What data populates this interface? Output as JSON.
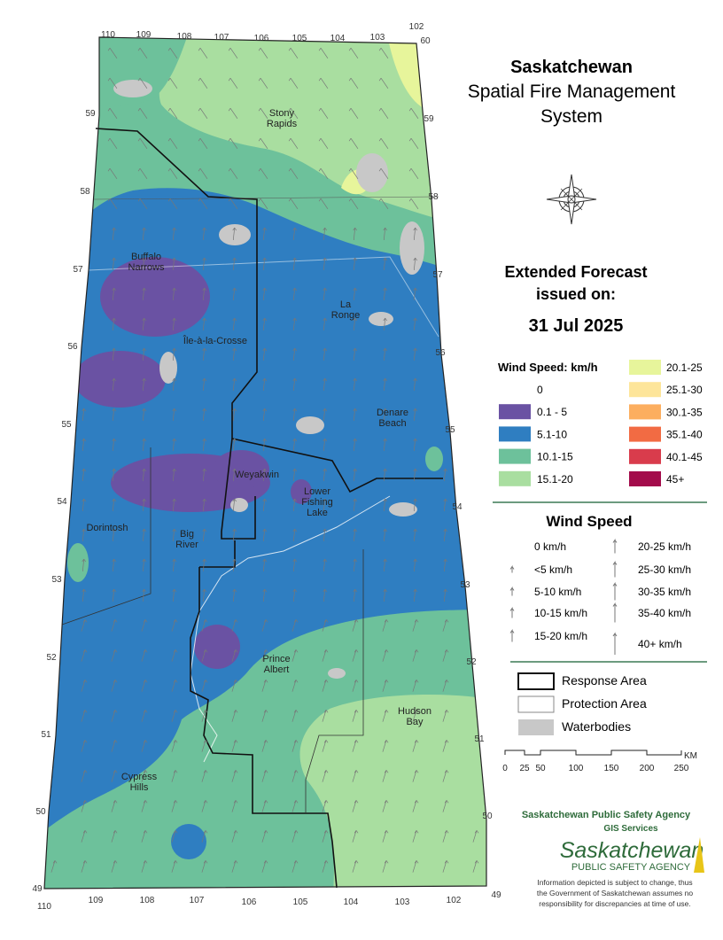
{
  "header": {
    "title": [
      "Saskatchewan",
      "Spatial Fire Management",
      "System"
    ],
    "forecast": [
      "Extended Forecast",
      "issued on:"
    ],
    "date": "31 Jul 2025"
  },
  "wind_legend": {
    "title": "Wind Speed: km/h",
    "classes": [
      {
        "label": "0",
        "color": "#ffffff"
      },
      {
        "label": "0.1 - 5",
        "color": "#6a52a3"
      },
      {
        "label": "5.1-10",
        "color": "#2f7ec1"
      },
      {
        "label": "10.1-15",
        "color": "#6dc19b"
      },
      {
        "label": "15.1-20",
        "color": "#a9dea0"
      },
      {
        "label": "20.1-25",
        "color": "#e7f59b"
      },
      {
        "label": "25.1-30",
        "color": "#fde59a"
      },
      {
        "label": "30.1-35",
        "color": "#fcae5f"
      },
      {
        "label": "35.1-40",
        "color": "#f26b43"
      },
      {
        "label": "40.1-45",
        "color": "#d93c4c"
      },
      {
        "label": "45+",
        "color": "#a30c4b"
      }
    ]
  },
  "arrow_legend": {
    "title": "Wind Speed",
    "items": [
      "0 km/h",
      "<5 km/h",
      "5-10 km/h",
      "10-15 km/h",
      "15-20 km/h",
      "20-25 km/h",
      "25-30 km/h",
      "30-35 km/h",
      "35-40 km/h",
      "40+ km/h"
    ]
  },
  "boundary_legend": [
    "Response Area",
    "Protection Area",
    "Waterbodies"
  ],
  "scale": {
    "ticks": [
      "0",
      "25",
      "50",
      "100",
      "150",
      "200",
      "250"
    ],
    "unit": "KM"
  },
  "agency": {
    "name": "Saskatchewan Public Safety Agency",
    "unit": "GIS  Services",
    "logo": [
      "Saskatchewan",
      "PUBLIC SAFETY AGENCY"
    ],
    "disclaimer": [
      "Information depicted is subject to change, thus",
      "the Government of Saskatchewan assumes no",
      "responsibility for discrepancies at time of use."
    ]
  },
  "map": {
    "places": [
      [
        "Stony",
        "Rapids"
      ],
      [
        "Buffalo",
        "Narrows"
      ],
      [
        "La",
        "Ronge"
      ],
      [
        "Île-à-la-Crosse"
      ],
      [
        "Denare",
        "Beach"
      ],
      [
        "Weyakwin"
      ],
      [
        "Lower",
        "Fishing",
        "Lake"
      ],
      [
        "Dorintosh"
      ],
      [
        "Big",
        "River"
      ],
      [
        "Prince",
        "Albert"
      ],
      [
        "Hudson",
        "Bay"
      ],
      [
        "Cypress",
        "Hills"
      ]
    ],
    "grid_top": [
      "110",
      "109",
      "108",
      "107",
      "106",
      "105",
      "104",
      "103",
      "102"
    ],
    "grid_bottom": [
      "110",
      "109",
      "108",
      "107",
      "106",
      "105",
      "104",
      "103",
      "102"
    ],
    "grid_left": [
      "59",
      "58",
      "57",
      "56",
      "55",
      "54",
      "53",
      "52",
      "51",
      "50",
      "49"
    ],
    "grid_right": [
      "60",
      "59",
      "58",
      "57",
      "56",
      "55",
      "54",
      "53",
      "52",
      "51",
      "50",
      "49"
    ]
  }
}
